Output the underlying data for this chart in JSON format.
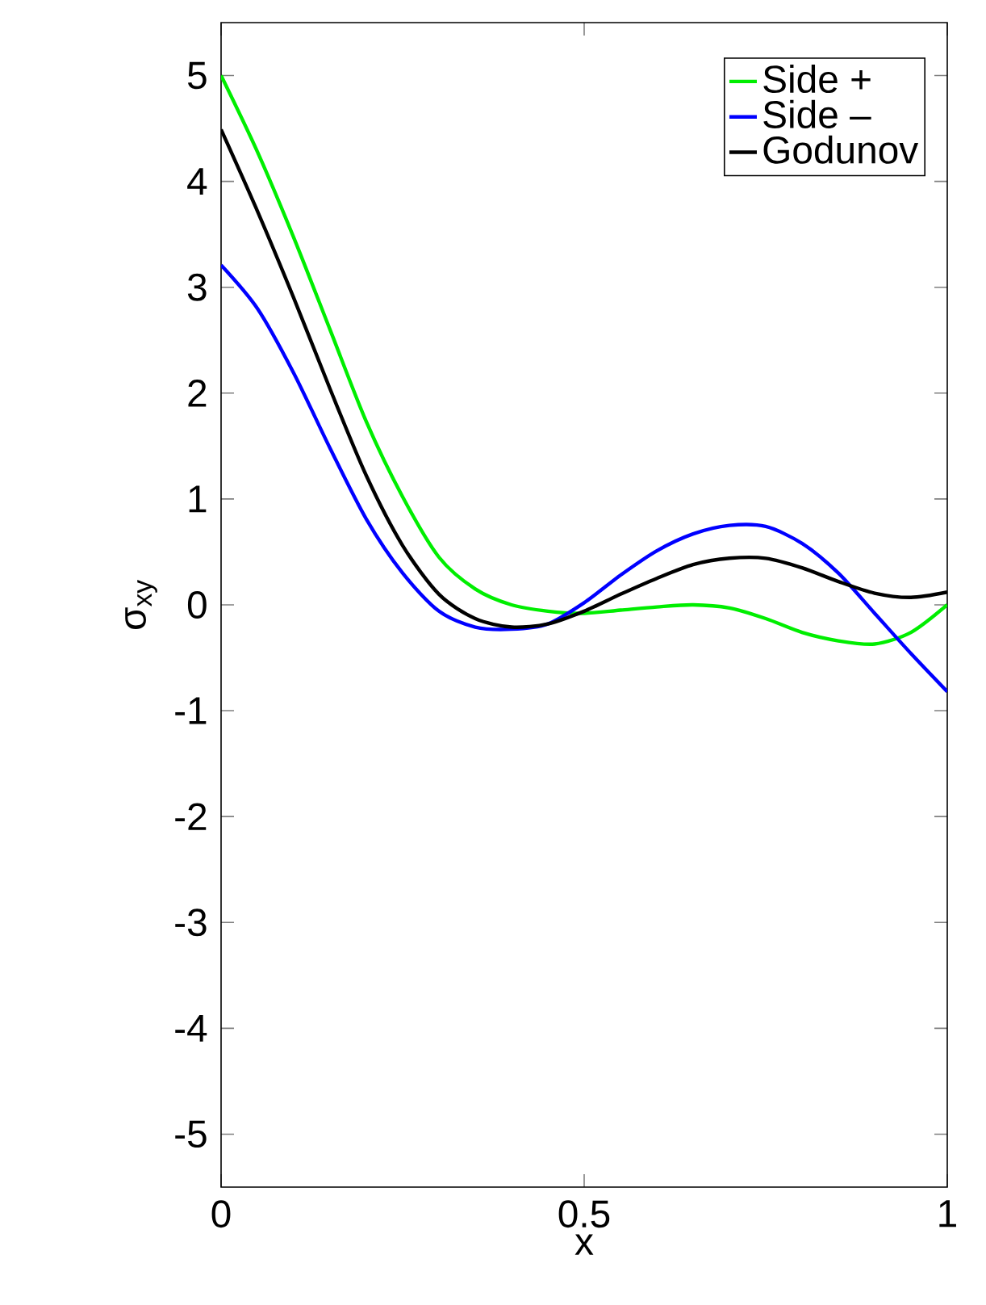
{
  "chart_data": {
    "type": "line",
    "xlabel": "x",
    "ylabel": "σ$_{xy}$",
    "x": [
      0,
      0.05,
      0.1,
      0.15,
      0.2,
      0.25,
      0.3,
      0.35,
      0.4,
      0.45,
      0.5,
      0.55,
      0.6,
      0.65,
      0.7,
      0.75,
      0.8,
      0.85,
      0.9,
      0.95,
      1.0
    ],
    "series": [
      {
        "name": "Side +",
        "color": "#00ee00",
        "values": [
          5.0,
          4.28,
          3.47,
          2.6,
          1.73,
          1.02,
          0.45,
          0.15,
          0.0,
          -0.06,
          -0.08,
          -0.05,
          -0.02,
          0.0,
          -0.03,
          -0.13,
          -0.26,
          -0.34,
          -0.37,
          -0.26,
          0.0
        ]
      },
      {
        "name": "Side –",
        "color": "#0000ff",
        "values": [
          3.21,
          2.8,
          2.19,
          1.48,
          0.81,
          0.3,
          -0.06,
          -0.21,
          -0.23,
          -0.18,
          0.02,
          0.28,
          0.51,
          0.67,
          0.75,
          0.74,
          0.58,
          0.3,
          -0.08,
          -0.46,
          -0.82
        ]
      },
      {
        "name": "Godunov",
        "color": "#000000",
        "values": [
          4.49,
          3.72,
          2.9,
          2.04,
          1.22,
          0.56,
          0.1,
          -0.13,
          -0.21,
          -0.18,
          -0.06,
          0.1,
          0.25,
          0.38,
          0.44,
          0.44,
          0.35,
          0.22,
          0.11,
          0.07,
          0.12
        ]
      }
    ],
    "xlim": [
      0,
      1
    ],
    "ylim": [
      -5.5,
      5.5
    ],
    "xticks": [
      0,
      0.5,
      1
    ],
    "yticks": [
      -5,
      -4,
      -3,
      -2,
      -1,
      0,
      1,
      2,
      3,
      4,
      5
    ],
    "legend": "top right",
    "grid": false,
    "marker": "none",
    "line_style": "solid"
  }
}
